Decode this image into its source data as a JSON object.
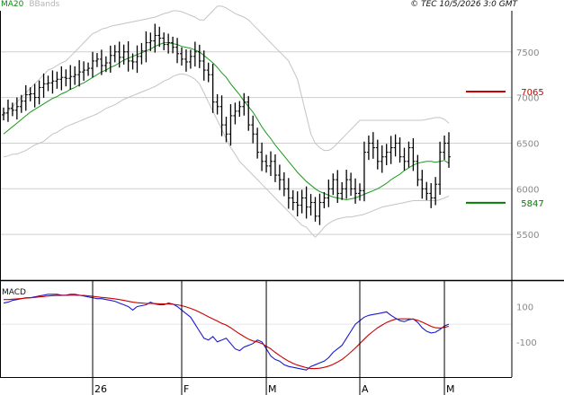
{
  "header": {
    "indicators": [
      {
        "label": "MA20",
        "color": "#0a8a0a"
      },
      {
        "label": "BBands",
        "color": "#b5b5b5"
      }
    ],
    "watermark": "© TEC 10/5/2026 3:0 GMT"
  },
  "chart_data": [
    {
      "type": "ohlc",
      "panel": "price",
      "y_ticks": [
        5500,
        6000,
        6500,
        7000,
        7500
      ],
      "ylim": [
        5000,
        7950
      ],
      "grid": true,
      "x_labels": [
        {
          "label": "26",
          "index": 20
        },
        {
          "label": "F",
          "index": 40
        },
        {
          "label": "M",
          "index": 59
        },
        {
          "label": "A",
          "index": 80
        },
        {
          "label": "M",
          "index": 99
        }
      ],
      "levels": [
        {
          "label": "7065",
          "value": 7065,
          "color": "#cc0000"
        },
        {
          "label": "5847",
          "value": 5847,
          "color": "#008000"
        }
      ],
      "close": [
        6830,
        6880,
        6860,
        6900,
        6960,
        7030,
        7040,
        7000,
        7110,
        7150,
        7160,
        7180,
        7200,
        7220,
        7210,
        7230,
        7250,
        7280,
        7300,
        7320,
        7400,
        7420,
        7350,
        7380,
        7460,
        7500,
        7440,
        7500,
        7400,
        7390,
        7450,
        7510,
        7600,
        7620,
        7680,
        7650,
        7580,
        7600,
        7550,
        7480,
        7420,
        7390,
        7450,
        7500,
        7400,
        7300,
        7250,
        6950,
        6900,
        6700,
        6600,
        6800,
        6850,
        6900,
        6950,
        6700,
        6600,
        6400,
        6300,
        6250,
        6300,
        6150,
        6100,
        6000,
        5900,
        5850,
        5820,
        5900,
        5800,
        5850,
        5700,
        5850,
        5900,
        6000,
        6100,
        5950,
        6000,
        6100,
        6000,
        5950,
        5980,
        6400,
        6500,
        6450,
        6300,
        6350,
        6400,
        6450,
        6500,
        6350,
        6300,
        6450,
        6300,
        6100,
        6000,
        5950,
        5900,
        6050,
        6400,
        6500,
        6350
      ],
      "ma20": [
        6600,
        6640,
        6680,
        6720,
        6760,
        6800,
        6840,
        6870,
        6900,
        6930,
        6960,
        6990,
        7010,
        7040,
        7060,
        7090,
        7110,
        7140,
        7160,
        7190,
        7220,
        7250,
        7280,
        7300,
        7330,
        7350,
        7380,
        7410,
        7430,
        7450,
        7470,
        7490,
        7510,
        7530,
        7560,
        7580,
        7600,
        7600,
        7590,
        7580,
        7560,
        7550,
        7540,
        7520,
        7500,
        7460,
        7420,
        7380,
        7330,
        7270,
        7220,
        7150,
        7090,
        7030,
        6960,
        6900,
        6840,
        6760,
        6680,
        6610,
        6550,
        6480,
        6420,
        6360,
        6300,
        6240,
        6180,
        6130,
        6080,
        6040,
        6000,
        5970,
        5950,
        5930,
        5910,
        5900,
        5890,
        5880,
        5890,
        5900,
        5920,
        5940,
        5960,
        5980,
        6000,
        6030,
        6060,
        6100,
        6130,
        6160,
        6200,
        6230,
        6260,
        6280,
        6290,
        6300,
        6300,
        6290,
        6300,
        6310,
        6280
      ],
      "bb_upper": [
        6800,
        6850,
        6900,
        6950,
        7000,
        7050,
        7100,
        7150,
        7200,
        7250,
        7300,
        7320,
        7350,
        7380,
        7400,
        7450,
        7500,
        7550,
        7600,
        7650,
        7700,
        7720,
        7750,
        7760,
        7780,
        7790,
        7800,
        7810,
        7820,
        7830,
        7840,
        7850,
        7860,
        7870,
        7880,
        7900,
        7920,
        7930,
        7950,
        7950,
        7940,
        7920,
        7900,
        7880,
        7850,
        7850,
        7900,
        7950,
        8000,
        8000,
        7980,
        7950,
        7920,
        7900,
        7880,
        7850,
        7800,
        7750,
        7700,
        7650,
        7600,
        7550,
        7500,
        7450,
        7400,
        7300,
        7200,
        7000,
        6800,
        6600,
        6500,
        6450,
        6420,
        6420,
        6450,
        6500,
        6550,
        6600,
        6650,
        6700,
        6750,
        6750,
        6750,
        6750,
        6750,
        6750,
        6750,
        6750,
        6750,
        6750,
        6750,
        6750,
        6750,
        6750,
        6750,
        6760,
        6770,
        6780,
        6780,
        6760,
        6720
      ],
      "bb_lower": [
        6350,
        6360,
        6380,
        6380,
        6400,
        6420,
        6450,
        6480,
        6500,
        6520,
        6560,
        6600,
        6620,
        6650,
        6680,
        6700,
        6720,
        6740,
        6760,
        6780,
        6800,
        6820,
        6850,
        6880,
        6900,
        6920,
        6950,
        6980,
        7000,
        7020,
        7040,
        7060,
        7080,
        7100,
        7120,
        7150,
        7180,
        7200,
        7230,
        7250,
        7260,
        7250,
        7230,
        7200,
        7150,
        7050,
        6950,
        6850,
        6750,
        6650,
        6550,
        6450,
        6380,
        6300,
        6250,
        6200,
        6150,
        6100,
        6050,
        6000,
        5950,
        5900,
        5850,
        5800,
        5750,
        5700,
        5650,
        5600,
        5580,
        5520,
        5470,
        5520,
        5580,
        5620,
        5650,
        5670,
        5680,
        5690,
        5690,
        5700,
        5710,
        5720,
        5740,
        5760,
        5780,
        5800,
        5810,
        5820,
        5830,
        5840,
        5850,
        5860,
        5870,
        5870,
        5870,
        5870,
        5870,
        5870,
        5880,
        5900,
        5920
      ]
    },
    {
      "type": "line",
      "panel": "macd",
      "title": "MACD",
      "y_ticks": [
        100,
        -100
      ],
      "ylim": [
        -300,
        230
      ],
      "series": [
        {
          "color": "#1a1ad0",
          "values": [
            120,
            125,
            135,
            140,
            145,
            150,
            150,
            155,
            160,
            165,
            170,
            170,
            170,
            165,
            165,
            170,
            170,
            165,
            160,
            155,
            150,
            145,
            145,
            140,
            135,
            130,
            120,
            110,
            100,
            80,
            100,
            105,
            110,
            125,
            115,
            110,
            110,
            120,
            115,
            100,
            80,
            60,
            40,
            0,
            -40,
            -80,
            -90,
            -70,
            -100,
            -90,
            -80,
            -110,
            -140,
            -150,
            -130,
            -120,
            -110,
            -90,
            -100,
            -140,
            -180,
            -200,
            -210,
            -230,
            -240,
            -245,
            -250,
            -255,
            -260,
            -240,
            -230,
            -220,
            -210,
            -190,
            -160,
            -140,
            -120,
            -80,
            -40,
            0,
            20,
            40,
            50,
            55,
            60,
            65,
            70,
            50,
            35,
            20,
            15,
            25,
            30,
            10,
            -20,
            -40,
            -50,
            -45,
            -30,
            -10,
            0
          ]
        },
        {
          "color": "#cc0000",
          "values": [
            140,
            140,
            142,
            144,
            146,
            148,
            150,
            152,
            155,
            157,
            160,
            162,
            163,
            163,
            164,
            165,
            165,
            164,
            163,
            161,
            158,
            155,
            152,
            150,
            147,
            144,
            140,
            135,
            130,
            125,
            122,
            120,
            118,
            118,
            117,
            116,
            115,
            115,
            113,
            110,
            105,
            98,
            90,
            80,
            68,
            55,
            42,
            30,
            18,
            5,
            -5,
            -20,
            -38,
            -55,
            -70,
            -85,
            -95,
            -100,
            -110,
            -125,
            -140,
            -160,
            -178,
            -195,
            -210,
            -222,
            -232,
            -240,
            -247,
            -252,
            -252,
            -250,
            -245,
            -238,
            -228,
            -215,
            -200,
            -180,
            -158,
            -135,
            -110,
            -85,
            -60,
            -40,
            -20,
            -5,
            10,
            20,
            28,
            30,
            30,
            30,
            28,
            22,
            12,
            0,
            -12,
            -20,
            -22,
            -18,
            -12
          ]
        }
      ]
    }
  ]
}
